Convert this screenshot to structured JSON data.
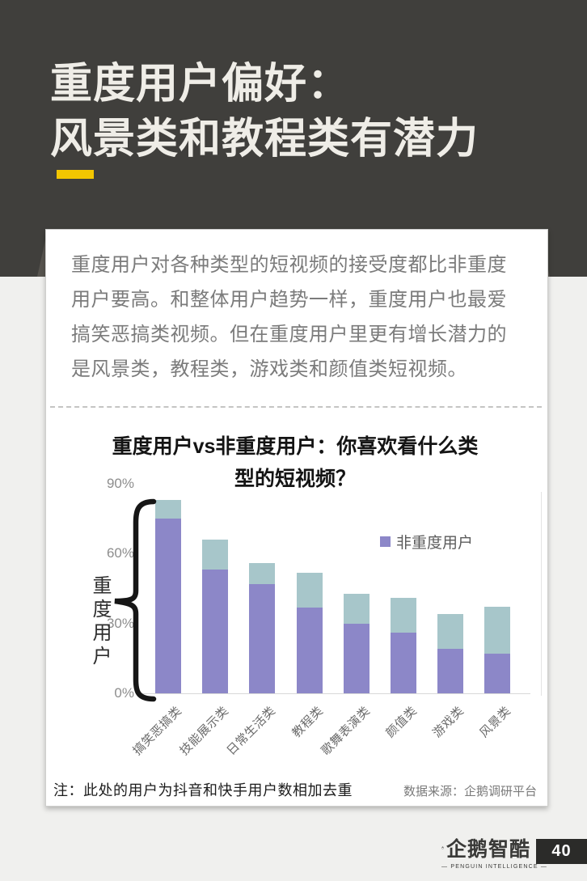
{
  "header": {
    "title_line1": "重度用户偏好：",
    "title_line2": "风景类和教程类有潜力"
  },
  "card": {
    "intro": "重度用户对各种类型的短视频的接受度都比非重度用户要高。和整体用户趋势一样，重度用户也最爱搞笑恶搞类视频。但在重度用户里更有增长潜力的是风景类，教程类，游戏类和颜值类短视频。",
    "note": "注：此处的用户为抖音和快手用户数相加去重",
    "source": "数据来源：企鹅调研平台"
  },
  "chart_data": {
    "type": "bar",
    "stacked": true,
    "title": "重度用户vs非重度用户：你喜欢看什么类型的短视频？",
    "title_lines": [
      "重度用户vs非重度用户：你喜欢看什么类",
      "型的短视频？"
    ],
    "categories": [
      "搞笑恶搞类",
      "技能展示类",
      "日常生活类",
      "教程类",
      "歌舞表演类",
      "颜值类",
      "游戏类",
      "风景类"
    ],
    "series": [
      {
        "name": "非重度用户",
        "values": [
          75,
          53,
          47,
          37,
          30,
          26,
          19,
          17
        ],
        "color": "#8c87c8"
      },
      {
        "name": "重度用户",
        "values": [
          83,
          66,
          56,
          52,
          43,
          41,
          34,
          37
        ],
        "color": "#a7c6ca"
      }
    ],
    "ylabel": "重度用户",
    "yticks": [
      "0%",
      "30%",
      "60%",
      "90%"
    ],
    "ylim": [
      0,
      90
    ],
    "legend": [
      "非重度用户"
    ],
    "legend_position": "top-right",
    "grid": false
  },
  "footer": {
    "logo_text": "企鹅智酷",
    "logo_tagline": "— PENGUIN INTELLIGENCE —",
    "page_number": "40"
  },
  "colors": {
    "header_bg": "#403f3c",
    "title_text": "#efede7",
    "accent_yellow": "#f3c600",
    "page_bg": "#f0f0ee",
    "non_heavy_purple": "#8c87c8",
    "heavy_teal": "#a7c6ca",
    "page_number_bg": "#2b2b29"
  }
}
